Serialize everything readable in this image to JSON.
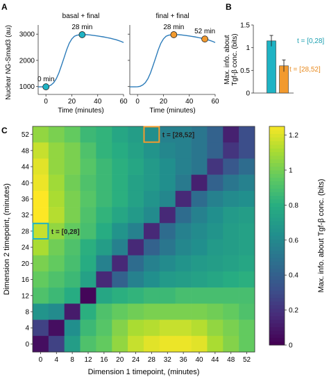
{
  "panels": {
    "A": "A",
    "B": "B",
    "C": "C"
  },
  "colors": {
    "line": "#2b7bb9",
    "cyan": "#1fb3c4",
    "orange": "#f29a2e",
    "cyan_text": "#1a9fb0",
    "orange_text": "#e8891c"
  },
  "chart_data": [
    {
      "id": "A-left",
      "type": "line",
      "title": "basal + final",
      "xlabel": "Time (minutes)",
      "ylabel": "Nuclear NG-Smad3 (au)",
      "xlim": [
        -6,
        60
      ],
      "ylim": [
        700,
        3350
      ],
      "xticks": [
        0,
        20,
        40,
        60
      ],
      "yticks": [
        1000,
        2000,
        3000
      ],
      "x": [
        -6,
        -2,
        0,
        2,
        4,
        6,
        8,
        10,
        12,
        14,
        16,
        18,
        20,
        22,
        24,
        26,
        28,
        30,
        32,
        34,
        36,
        38,
        40,
        42,
        44,
        46,
        48,
        50,
        52,
        54,
        56,
        58,
        60
      ],
      "y": [
        990,
        990,
        995,
        1010,
        1060,
        1150,
        1300,
        1520,
        1800,
        2100,
        2400,
        2650,
        2820,
        2920,
        2960,
        2975,
        2980,
        2982,
        2978,
        2970,
        2958,
        2945,
        2930,
        2915,
        2900,
        2880,
        2860,
        2840,
        2815,
        2790,
        2760,
        2725,
        2680
      ],
      "markers": [
        {
          "x": 0,
          "y": 990,
          "label": "0 min",
          "color": "#1fb3c4"
        },
        {
          "x": 28,
          "y": 2980,
          "label": "28 min",
          "color": "#1fb3c4"
        }
      ]
    },
    {
      "id": "A-right",
      "type": "line",
      "title": "final + final",
      "xlabel": "Time (minutes)",
      "xlim": [
        -6,
        60
      ],
      "ylim": [
        700,
        3350
      ],
      "xticks": [
        0,
        20,
        40,
        60
      ],
      "x": [
        -6,
        -2,
        0,
        2,
        4,
        6,
        8,
        10,
        12,
        14,
        16,
        18,
        20,
        22,
        24,
        26,
        28,
        30,
        32,
        34,
        36,
        38,
        40,
        42,
        44,
        46,
        48,
        50,
        52,
        54,
        56,
        58,
        60
      ],
      "y": [
        990,
        990,
        995,
        1010,
        1060,
        1150,
        1300,
        1520,
        1800,
        2100,
        2400,
        2650,
        2820,
        2920,
        2960,
        2975,
        2980,
        2982,
        2978,
        2970,
        2958,
        2945,
        2930,
        2915,
        2900,
        2880,
        2860,
        2840,
        2815,
        2790,
        2760,
        2725,
        2680
      ],
      "markers": [
        {
          "x": 28,
          "y": 2980,
          "label": "28 min",
          "color": "#f29a2e"
        },
        {
          "x": 52,
          "y": 2815,
          "label": "52 min",
          "color": "#f29a2e"
        }
      ]
    },
    {
      "id": "B",
      "type": "bar",
      "ylabel": "Max. info. about Tgf-β conc. (bits)",
      "ylim": [
        0,
        1.5
      ],
      "yticks": [
        0,
        0.5,
        1,
        1.5
      ],
      "categories": [
        "t = [0,28]",
        "t = [28,52]"
      ],
      "values": [
        1.15,
        0.6
      ],
      "errors": [
        0.12,
        0.13
      ],
      "colors": [
        "#1fb3c4",
        "#f29a2e"
      ]
    },
    {
      "id": "C",
      "type": "heatmap",
      "xlabel": "Dimension 1 timepoint, (minutes)",
      "ylabel": "Dimension 2 timepoint, (minutes)",
      "x_ticks": [
        "0",
        "4",
        "8",
        "12",
        "16",
        "20",
        "24",
        "28",
        "32",
        "36",
        "40",
        "44",
        "48",
        "52"
      ],
      "y_ticks": [
        "0",
        "4",
        "8",
        "12",
        "16",
        "20",
        "24",
        "28",
        "32",
        "36",
        "40",
        "44",
        "48",
        "52"
      ],
      "colorbar_label": "Max. info. about Tgf-β conc. (bits)",
      "colorbar_ticks": [
        "0",
        "0.2",
        "0.4",
        "0.6",
        "0.8",
        "1",
        "1.2"
      ],
      "vmin": 0,
      "vmax": 1.25,
      "annotations": [
        {
          "label": "t = [0,28]",
          "col": 0,
          "row": 7,
          "color": "#1fb3c4"
        },
        {
          "label": "t = [28,52]",
          "col": 7,
          "row": 13,
          "color": "#f29a2e"
        }
      ],
      "matrix_note": "rows from y=52 (top) to y=0 (bottom); columns x=0..52",
      "matrix": [
        [
          1.05,
          1.0,
          0.95,
          0.85,
          0.82,
          0.75,
          0.7,
          0.62,
          0.55,
          0.55,
          0.5,
          0.4,
          0.12,
          0.3
        ],
        [
          1.15,
          1.05,
          1.0,
          0.9,
          0.82,
          0.78,
          0.72,
          0.65,
          0.58,
          0.55,
          0.5,
          0.4,
          0.2,
          0.3
        ],
        [
          1.2,
          1.05,
          1.0,
          0.92,
          0.85,
          0.8,
          0.75,
          0.68,
          0.62,
          0.55,
          0.5,
          0.2,
          0.35,
          0.45
        ],
        [
          1.22,
          1.08,
          0.98,
          0.9,
          0.85,
          0.8,
          0.72,
          0.68,
          0.62,
          0.52,
          0.12,
          0.4,
          0.5,
          0.55
        ],
        [
          1.25,
          1.1,
          1.0,
          0.92,
          0.85,
          0.8,
          0.72,
          0.65,
          0.58,
          0.15,
          0.45,
          0.55,
          0.6,
          0.62
        ],
        [
          1.25,
          1.12,
          1.0,
          0.9,
          0.82,
          0.75,
          0.68,
          0.6,
          0.15,
          0.45,
          0.55,
          0.62,
          0.68,
          0.7
        ],
        [
          1.15,
          1.05,
          0.95,
          0.88,
          0.78,
          0.65,
          0.55,
          0.15,
          0.45,
          0.55,
          0.6,
          0.65,
          0.7,
          0.72
        ],
        [
          1.1,
          0.98,
          0.9,
          0.8,
          0.7,
          0.55,
          0.15,
          0.4,
          0.5,
          0.58,
          0.62,
          0.68,
          0.7,
          0.72
        ],
        [
          1.0,
          0.95,
          0.88,
          0.78,
          0.55,
          0.15,
          0.45,
          0.55,
          0.6,
          0.65,
          0.68,
          0.7,
          0.72,
          0.75
        ],
        [
          0.95,
          0.9,
          0.85,
          0.72,
          0.15,
          0.4,
          0.55,
          0.62,
          0.68,
          0.7,
          0.72,
          0.75,
          0.78,
          0.8
        ],
        [
          0.9,
          0.85,
          0.78,
          0.02,
          0.75,
          0.8,
          0.82,
          0.85,
          0.85,
          0.88,
          0.88,
          0.88,
          0.88,
          0.88
        ],
        [
          0.65,
          0.6,
          0.1,
          0.8,
          0.9,
          0.95,
          0.98,
          1.0,
          1.0,
          1.0,
          1.0,
          0.98,
          0.95,
          0.9
        ],
        [
          0.25,
          0.05,
          0.62,
          0.85,
          0.92,
          1.02,
          1.1,
          1.12,
          1.15,
          1.15,
          1.12,
          1.05,
          1.0,
          0.95
        ],
        [
          0.05,
          0.25,
          0.7,
          0.9,
          0.95,
          1.05,
          1.15,
          1.2,
          1.22,
          1.22,
          1.2,
          1.1,
          1.02,
          0.95
        ]
      ]
    }
  ]
}
